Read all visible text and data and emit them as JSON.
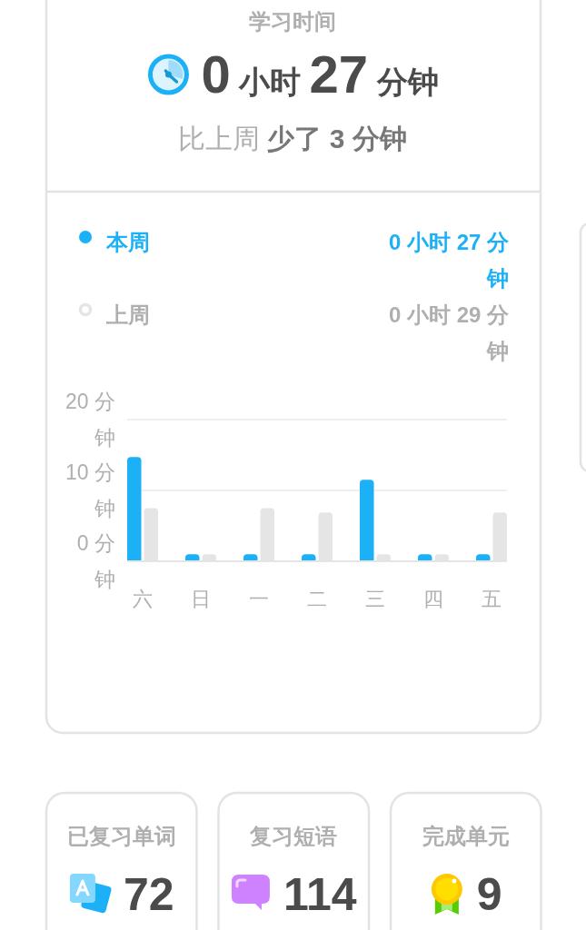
{
  "chart_data": [
    {
      "type": "other",
      "title": "学习时间",
      "annotations": [
        "0 小时 27 分钟",
        "比上周 少了 3 分钟"
      ]
    },
    {
      "type": "bar",
      "categories": [
        "六",
        "日",
        "一",
        "二",
        "三",
        "四",
        "五"
      ],
      "series": [
        {
          "name": "本周",
          "color": "#1cb0f6",
          "values": [
            14.7,
            1,
            1,
            1,
            11.5,
            1,
            1
          ]
        },
        {
          "name": "上周",
          "color": "#e5e5e5",
          "values": [
            7.5,
            1,
            7.5,
            6.9,
            1,
            1,
            6.9
          ]
        }
      ],
      "ylim": [
        0,
        20
      ],
      "yticks": [
        {
          "value": 0,
          "label": "0 分钟"
        },
        {
          "value": 10,
          "label": "10 分钟"
        },
        {
          "value": 20,
          "label": "20 分钟"
        }
      ],
      "grid": "y",
      "legend": "top",
      "annotations": [
        "0 小时 27 分钟",
        "0 小时 29 分钟"
      ]
    },
    {
      "type": "other",
      "title": "已复习单词",
      "annotations": [
        "72"
      ]
    },
    {
      "type": "other",
      "title": "复习短语",
      "annotations": [
        "114"
      ]
    },
    {
      "type": "other",
      "title": "完成单元",
      "annotations": [
        "9"
      ]
    }
  ]
}
